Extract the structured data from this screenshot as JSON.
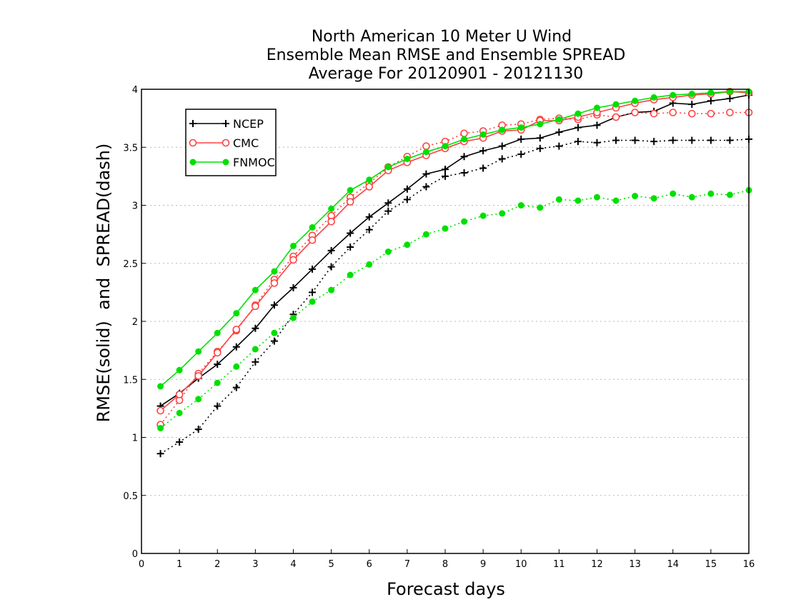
{
  "chart_data": {
    "type": "line",
    "title_lines": [
      "North American 10 Meter U Wind",
      "Ensemble Mean RMSE and Ensemble SPREAD",
      "Average For 20120901 - 20121130"
    ],
    "xlabel": "Forecast days",
    "ylabel": "RMSE(solid)  and  SPREAD(dash)",
    "xlim": [
      0,
      16
    ],
    "ylim": [
      0,
      4
    ],
    "x_ticks": [
      "0",
      "1",
      "2",
      "3",
      "4",
      "5",
      "6",
      "7",
      "8",
      "9",
      "10",
      "11",
      "12",
      "13",
      "14",
      "15",
      "16"
    ],
    "y_ticks": [
      "0",
      "0.5",
      "1",
      "1.5",
      "2",
      "2.5",
      "3",
      "3.5",
      "4"
    ],
    "grid": "horizontal dotted",
    "legend_position": "top-left",
    "x": [
      0.5,
      1,
      1.5,
      2,
      2.5,
      3,
      3.5,
      4,
      4.5,
      5,
      5.5,
      6,
      6.5,
      7,
      7.5,
      8,
      8.5,
      9,
      9.5,
      10,
      10.5,
      11,
      11.5,
      12,
      12.5,
      13,
      13.5,
      14,
      14.5,
      15,
      15.5,
      16
    ],
    "series": [
      {
        "name": "NCEP",
        "color": "#000000",
        "marker": "plus",
        "rmse": [
          1.27,
          1.38,
          1.51,
          1.63,
          1.78,
          1.94,
          2.14,
          2.29,
          2.45,
          2.61,
          2.76,
          2.9,
          3.02,
          3.14,
          3.27,
          3.31,
          3.42,
          3.47,
          3.51,
          3.57,
          3.58,
          3.63,
          3.67,
          3.69,
          3.76,
          3.8,
          3.81,
          3.88,
          3.87,
          3.9,
          3.92,
          3.95
        ],
        "spread": [
          0.86,
          0.96,
          1.07,
          1.27,
          1.43,
          1.65,
          1.83,
          2.06,
          2.25,
          2.47,
          2.64,
          2.79,
          2.95,
          3.05,
          3.16,
          3.25,
          3.28,
          3.32,
          3.4,
          3.44,
          3.49,
          3.51,
          3.55,
          3.54,
          3.56,
          3.56,
          3.55,
          3.56,
          3.56,
          3.56,
          3.56,
          3.57
        ]
      },
      {
        "name": "CMC",
        "color": "#ff4040",
        "marker": "circle-open",
        "rmse": [
          1.23,
          1.37,
          1.53,
          1.73,
          1.93,
          2.13,
          2.33,
          2.53,
          2.7,
          2.86,
          3.03,
          3.16,
          3.3,
          3.37,
          3.43,
          3.49,
          3.55,
          3.58,
          3.64,
          3.65,
          3.73,
          3.73,
          3.76,
          3.8,
          3.84,
          3.88,
          3.91,
          3.93,
          3.95,
          3.96,
          3.98,
          3.97
        ],
        "spread": [
          1.11,
          1.32,
          1.55,
          1.74,
          1.92,
          2.14,
          2.36,
          2.56,
          2.74,
          2.91,
          3.07,
          3.19,
          3.33,
          3.42,
          3.51,
          3.55,
          3.62,
          3.64,
          3.69,
          3.7,
          3.74,
          3.75,
          3.74,
          3.78,
          3.76,
          3.8,
          3.79,
          3.8,
          3.79,
          3.79,
          3.8,
          3.8
        ]
      },
      {
        "name": "FNMOC",
        "color": "#00e000",
        "marker": "circle-filled",
        "rmse": [
          1.44,
          1.58,
          1.74,
          1.9,
          2.07,
          2.27,
          2.43,
          2.65,
          2.81,
          2.97,
          3.13,
          3.22,
          3.33,
          3.4,
          3.46,
          3.51,
          3.57,
          3.61,
          3.65,
          3.67,
          3.7,
          3.74,
          3.79,
          3.84,
          3.87,
          3.9,
          3.93,
          3.95,
          3.96,
          3.97,
          3.98,
          3.98
        ],
        "spread": [
          1.08,
          1.21,
          1.33,
          1.47,
          1.61,
          1.76,
          1.9,
          2.03,
          2.17,
          2.27,
          2.4,
          2.49,
          2.6,
          2.66,
          2.75,
          2.8,
          2.86,
          2.91,
          2.93,
          3.0,
          2.98,
          3.05,
          3.04,
          3.07,
          3.04,
          3.08,
          3.06,
          3.1,
          3.07,
          3.1,
          3.09,
          3.13
        ]
      }
    ]
  }
}
